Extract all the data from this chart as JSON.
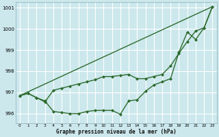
{
  "background_color": "#cce8ec",
  "grid_color": "#ffffff",
  "line_color": "#2d6a2d",
  "linewidth": 1.0,
  "markersize": 2.5,
  "xlim": [
    -0.5,
    23.5
  ],
  "ylim": [
    995.55,
    1001.25
  ],
  "yticks": [
    996,
    997,
    998,
    999,
    1000,
    1001
  ],
  "xticks": [
    0,
    1,
    2,
    3,
    4,
    5,
    6,
    7,
    8,
    9,
    10,
    11,
    12,
    13,
    14,
    15,
    16,
    17,
    18,
    19,
    20,
    21,
    22,
    23
  ],
  "xlabel": "Graphe pression niveau de la mer (hPa)",
  "series": [
    {
      "x": [
        0,
        1,
        2,
        3,
        4,
        5,
        6,
        7,
        8,
        9,
        10,
        11,
        12,
        13,
        14,
        15,
        16,
        17,
        18,
        19,
        20,
        21,
        22,
        23
      ],
      "y": [
        996.85,
        996.95,
        996.75,
        996.6,
        996.1,
        996.05,
        996.0,
        996.0,
        996.1,
        996.15,
        996.15,
        996.15,
        995.97,
        996.6,
        996.65,
        997.05,
        997.35,
        997.5,
        997.65,
        998.9,
        999.85,
        999.5,
        1000.05,
        1001.05
      ]
    },
    {
      "x": [
        0,
        1,
        2,
        3,
        4,
        5,
        6,
        7,
        8,
        9,
        10,
        11,
        12,
        13,
        14,
        15,
        16,
        17,
        18,
        19,
        20,
        21,
        22,
        23
      ],
      "y": [
        996.85,
        996.95,
        996.75,
        996.55,
        997.1,
        997.2,
        997.3,
        997.4,
        997.5,
        997.6,
        997.75,
        997.75,
        997.8,
        997.85,
        997.65,
        997.65,
        997.75,
        997.85,
        998.25,
        998.85,
        999.4,
        999.9,
        1000.05,
        1001.05
      ]
    },
    {
      "x": [
        0,
        23
      ],
      "y": [
        996.85,
        1001.05
      ]
    }
  ]
}
